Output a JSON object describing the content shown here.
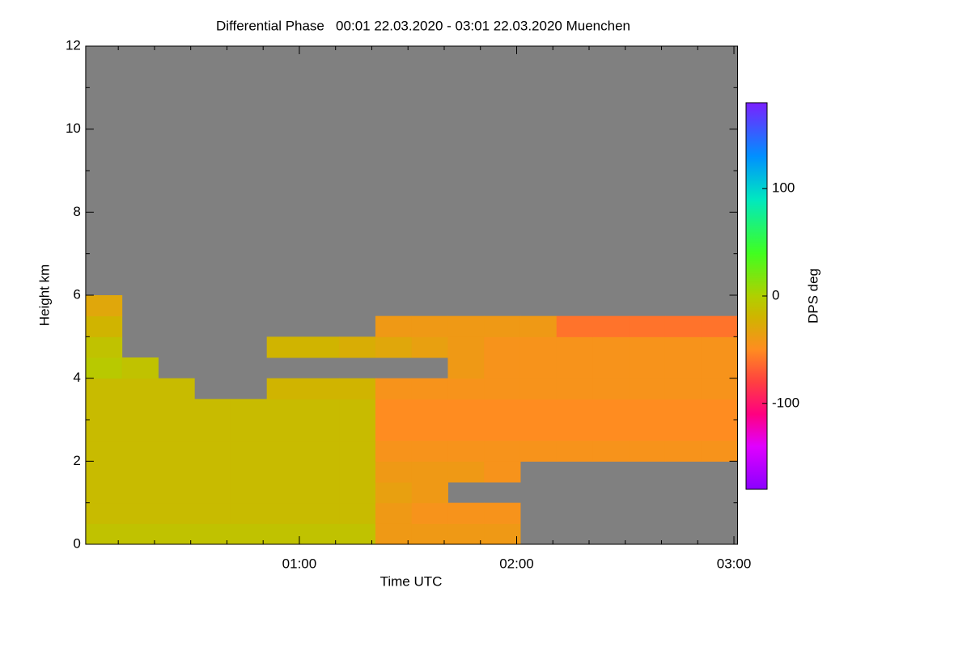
{
  "chart_data": {
    "type": "heatmap",
    "title": "Differential Phase   00:01 22.03.2020 - 03:01 22.03.2020 Muenchen",
    "xlabel": "Time UTC",
    "ylabel": "Height km",
    "colorbar_label": "DPS deg",
    "background": "#808080",
    "xlim": [
      1,
      181
    ],
    "xticks": [
      {
        "value": 60,
        "label": "01:00"
      },
      {
        "value": 120,
        "label": "02:00"
      },
      {
        "value": 180,
        "label": "03:00"
      }
    ],
    "xminorticks": [
      10,
      20,
      30,
      40,
      50,
      70,
      80,
      90,
      100,
      110,
      130,
      140,
      150,
      160,
      170
    ],
    "ylim": [
      0,
      12
    ],
    "yticks": [
      0,
      2,
      4,
      6,
      8,
      10,
      12
    ],
    "yminorticks": [
      1,
      3,
      5,
      7,
      9,
      11
    ],
    "clim": [
      -180,
      180
    ],
    "cticks": [
      -100,
      0,
      100
    ],
    "colorscale": [
      [
        -180,
        "#8a00ff"
      ],
      [
        -140,
        "#e000ff"
      ],
      [
        -110,
        "#ff0080"
      ],
      [
        -80,
        "#ff4040"
      ],
      [
        -50,
        "#ff8c20"
      ],
      [
        -20,
        "#d0b400"
      ],
      [
        0,
        "#b0d000"
      ],
      [
        40,
        "#40ff20"
      ],
      [
        90,
        "#00e8c0"
      ],
      [
        130,
        "#0090ff"
      ],
      [
        180,
        "#7a20ff"
      ]
    ],
    "x_bins": [
      1,
      11,
      21,
      31,
      41,
      51,
      61,
      71,
      81,
      91,
      101,
      111,
      121,
      131,
      141,
      151,
      161,
      171,
      181
    ],
    "y_bins": [
      0,
      0.5,
      1,
      1.5,
      2,
      2.5,
      3,
      3.5,
      4,
      4.5,
      5,
      5.5,
      6
    ],
    "z": [
      [
        -10,
        -10,
        -10,
        -10,
        -10,
        -10,
        -10,
        -10,
        -40,
        -40,
        -40,
        -40,
        null,
        null,
        null,
        null,
        null,
        null
      ],
      [
        -15,
        -15,
        -15,
        -15,
        -15,
        -15,
        -15,
        -15,
        -40,
        -45,
        -45,
        -45,
        null,
        null,
        null,
        null,
        null,
        null
      ],
      [
        -15,
        -15,
        -15,
        -15,
        -15,
        -15,
        -15,
        -15,
        -35,
        -40,
        null,
        null,
        null,
        null,
        null,
        null,
        null,
        null
      ],
      [
        -15,
        -15,
        -15,
        -15,
        -15,
        -15,
        -15,
        -15,
        -40,
        -40,
        -40,
        -45,
        null,
        null,
        null,
        null,
        null,
        null
      ],
      [
        -15,
        -15,
        -15,
        -15,
        -15,
        -15,
        -15,
        -15,
        -45,
        -45,
        -45,
        -45,
        -45,
        -45,
        -45,
        -45,
        -45,
        -45
      ],
      [
        -15,
        -15,
        -15,
        -15,
        -15,
        -15,
        -15,
        -15,
        -50,
        -50,
        -50,
        -50,
        -50,
        -50,
        -50,
        -50,
        -50,
        -50
      ],
      [
        -15,
        -15,
        -15,
        -15,
        -15,
        -15,
        -15,
        -15,
        -50,
        -50,
        -50,
        -50,
        -50,
        -50,
        -50,
        -50,
        -50,
        -50
      ],
      [
        -15,
        -15,
        -15,
        null,
        null,
        -20,
        -20,
        -20,
        -45,
        -45,
        -45,
        -45,
        -45,
        -45,
        -45,
        -45,
        -45,
        -45
      ],
      [
        -5,
        -10,
        null,
        null,
        null,
        null,
        null,
        null,
        null,
        null,
        -40,
        -45,
        -45,
        -45,
        -45,
        -45,
        -45,
        -45
      ],
      [
        -10,
        null,
        null,
        null,
        null,
        -20,
        -20,
        -25,
        -30,
        -35,
        -40,
        -45,
        -45,
        -45,
        -45,
        -45,
        -45,
        -45
      ],
      [
        -20,
        null,
        null,
        null,
        null,
        null,
        null,
        null,
        -40,
        -40,
        -40,
        -40,
        -40,
        -60,
        -60,
        -60,
        -60,
        -60
      ],
      [
        -30,
        null,
        null,
        null,
        null,
        null,
        null,
        null,
        null,
        null,
        null,
        null,
        null,
        null,
        null,
        null,
        null,
        null
      ]
    ]
  }
}
